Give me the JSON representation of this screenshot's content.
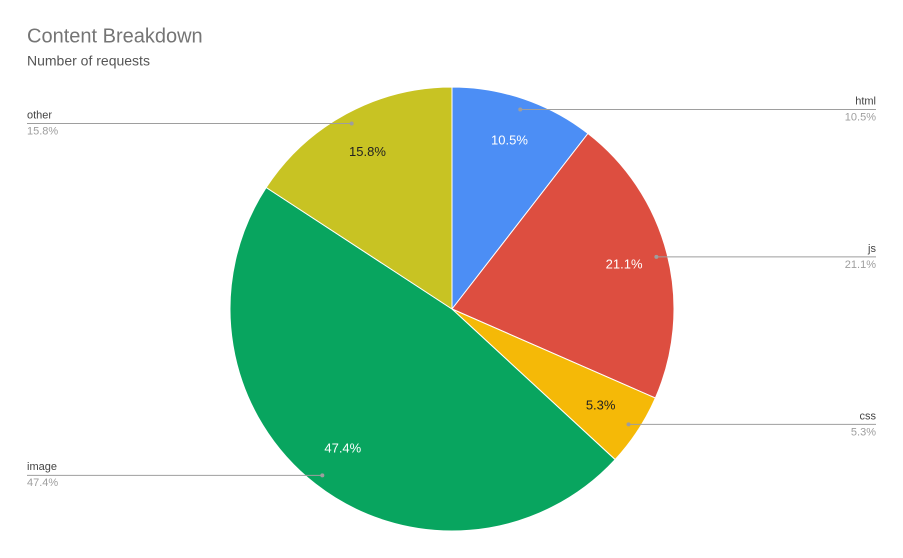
{
  "chart_data": {
    "type": "pie",
    "title": "Content Breakdown",
    "subtitle": "Number of requests",
    "categories": [
      "html",
      "js",
      "css",
      "image",
      "other"
    ],
    "values": [
      10.5,
      21.1,
      5.3,
      47.4,
      15.8
    ],
    "value_labels": [
      "10.5%",
      "21.1%",
      "5.3%",
      "47.4%",
      "15.8%"
    ],
    "colors": [
      "#4c8ef5",
      "#dd4e40",
      "#f5b907",
      "#08a55f",
      "#c8c323"
    ]
  }
}
